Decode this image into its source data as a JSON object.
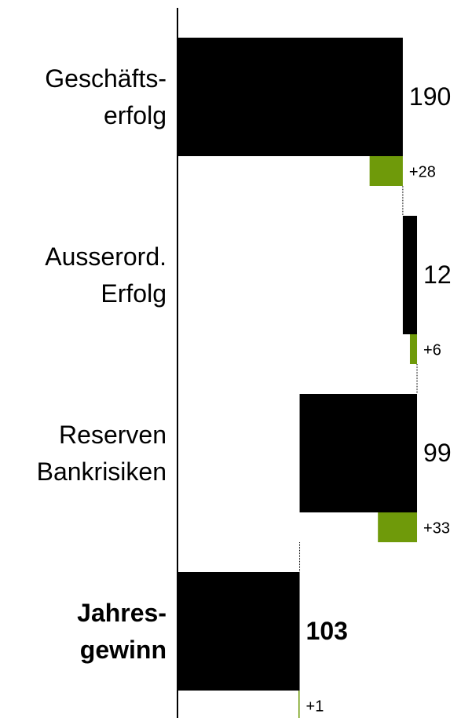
{
  "chart_data": {
    "type": "waterfall",
    "categories": [
      [
        "Geschäfts-",
        "erfolg"
      ],
      [
        "Ausserord.",
        "Erfolg"
      ],
      [
        "Reserven",
        "Bankrisiken"
      ],
      [
        "Jahres-",
        "gewinn"
      ]
    ],
    "values": [
      190,
      12,
      -99,
      103
    ],
    "value_labels": [
      "190",
      "12",
      "99",
      "103"
    ],
    "totals": [
      false,
      false,
      false,
      true
    ],
    "changes": [
      28,
      6,
      33,
      1
    ],
    "change_labels": [
      "+28",
      "+6",
      "+33",
      "+1"
    ],
    "color": "#000000",
    "change_color": "#6f9a0a",
    "xlim": [
      0,
      200
    ]
  }
}
